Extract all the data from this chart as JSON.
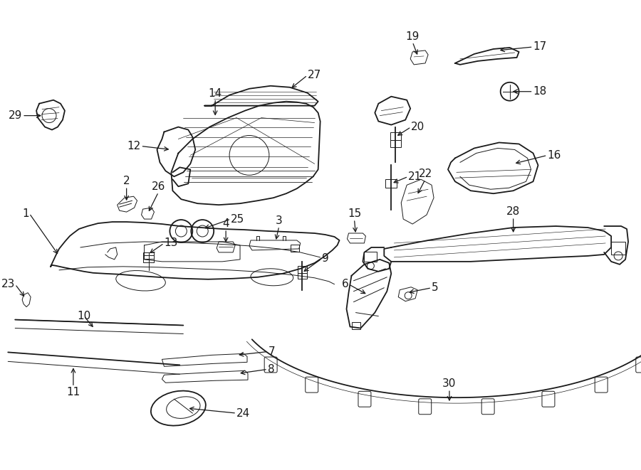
{
  "bg_color": "#ffffff",
  "line_color": "#1a1a1a",
  "lw_main": 1.3,
  "lw_thin": 0.7,
  "label_fontsize": 11,
  "figsize": [
    9.0,
    6.61
  ],
  "dpi": 100
}
